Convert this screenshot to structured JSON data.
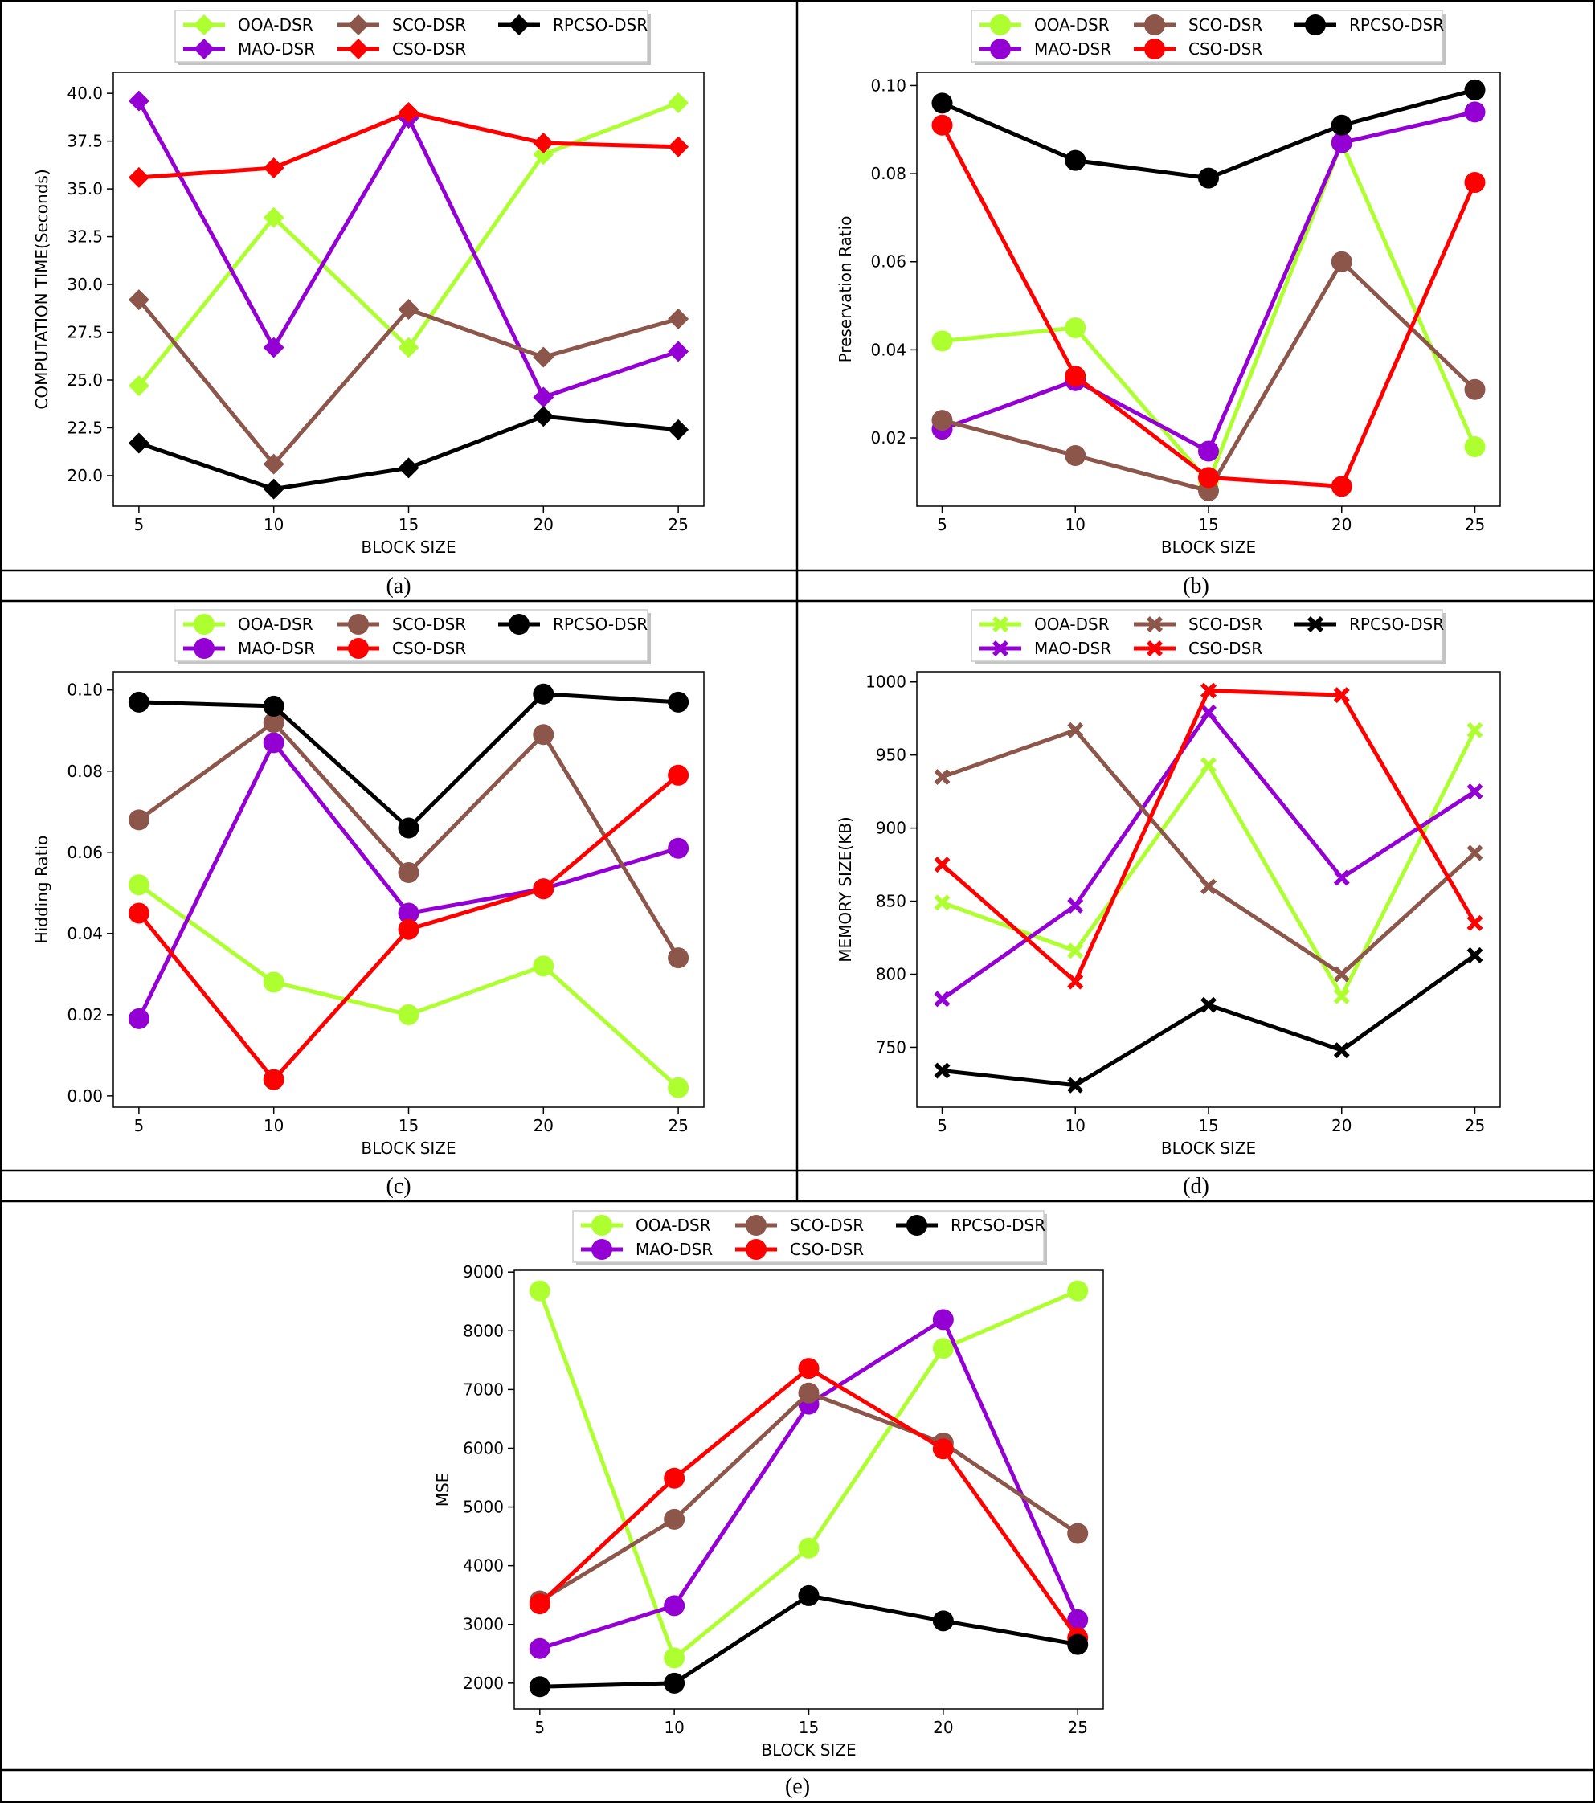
{
  "figure": {
    "panels": [
      {
        "id": "a",
        "caption": "(a)"
      },
      {
        "id": "b",
        "caption": "(b)"
      },
      {
        "id": "c",
        "caption": "(c)"
      },
      {
        "id": "d",
        "caption": "(d)"
      },
      {
        "id": "e",
        "caption": "(e)"
      }
    ]
  },
  "colors": {
    "OOA-DSR": "#adff2f",
    "MAO-DSR": "#9400d3",
    "SCO-DSR": "#8c564b",
    "CSO-DSR": "#ff0000",
    "RPCSO-DSR": "#000000"
  },
  "chart_data": [
    {
      "id": "a",
      "type": "line",
      "marker": "diamond",
      "title": "",
      "xlabel": "BLOCK SIZE",
      "ylabel": "COMPUTATION TIME(Seconds)",
      "x": [
        5,
        10,
        15,
        20,
        25
      ],
      "xlim": [
        4.05,
        25.95
      ],
      "ylim": [
        18.4,
        41.1
      ],
      "yticks": [
        "20.0",
        "22.5",
        "25.0",
        "27.5",
        "30.0",
        "32.5",
        "35.0",
        "37.5",
        "40.0"
      ],
      "grid": false,
      "legend": "top-center",
      "series": [
        {
          "name": "OOA-DSR",
          "values": [
            24.7,
            33.5,
            26.7,
            36.8,
            39.5
          ]
        },
        {
          "name": "MAO-DSR",
          "values": [
            39.6,
            26.7,
            38.7,
            24.1,
            26.5
          ]
        },
        {
          "name": "SCO-DSR",
          "values": [
            29.2,
            20.6,
            28.7,
            26.2,
            28.2
          ]
        },
        {
          "name": "CSO-DSR",
          "values": [
            35.6,
            36.1,
            39.0,
            37.4,
            37.2
          ]
        },
        {
          "name": "RPCSO-DSR",
          "values": [
            21.7,
            19.3,
            20.4,
            23.1,
            22.4
          ]
        }
      ]
    },
    {
      "id": "b",
      "type": "line",
      "marker": "circle",
      "title": "",
      "xlabel": "BLOCK SIZE",
      "ylabel": "Preservation Ratio",
      "x": [
        5,
        10,
        15,
        20,
        25
      ],
      "xlim": [
        4.05,
        25.95
      ],
      "ylim": [
        0.0045,
        0.103
      ],
      "yticks": [
        "0.02",
        "0.04",
        "0.06",
        "0.08",
        "0.10"
      ],
      "grid": false,
      "legend": "top-center",
      "series": [
        {
          "name": "OOA-DSR",
          "values": [
            0.042,
            0.045,
            0.01,
            0.087,
            0.018
          ]
        },
        {
          "name": "MAO-DSR",
          "values": [
            0.022,
            0.033,
            0.017,
            0.087,
            0.094
          ]
        },
        {
          "name": "SCO-DSR",
          "values": [
            0.024,
            0.016,
            0.008,
            0.06,
            0.031
          ]
        },
        {
          "name": "CSO-DSR",
          "values": [
            0.091,
            0.034,
            0.011,
            0.009,
            0.078
          ]
        },
        {
          "name": "RPCSO-DSR",
          "values": [
            0.096,
            0.083,
            0.079,
            0.091,
            0.099
          ]
        }
      ]
    },
    {
      "id": "c",
      "type": "line",
      "marker": "circle",
      "title": "",
      "xlabel": "BLOCK SIZE",
      "ylabel": "Hidding Ratio",
      "x": [
        5,
        10,
        15,
        20,
        25
      ],
      "xlim": [
        4.05,
        25.95
      ],
      "ylim": [
        -0.0028,
        0.1045
      ],
      "yticks": [
        "0.00",
        "0.02",
        "0.04",
        "0.06",
        "0.08",
        "0.10"
      ],
      "grid": false,
      "legend": "top-center",
      "series": [
        {
          "name": "OOA-DSR",
          "values": [
            0.052,
            0.028,
            0.02,
            0.032,
            0.002
          ]
        },
        {
          "name": "MAO-DSR",
          "values": [
            0.019,
            0.087,
            0.045,
            0.051,
            0.061
          ]
        },
        {
          "name": "SCO-DSR",
          "values": [
            0.068,
            0.092,
            0.055,
            0.089,
            0.034
          ]
        },
        {
          "name": "CSO-DSR",
          "values": [
            0.045,
            0.004,
            0.041,
            0.051,
            0.079
          ]
        },
        {
          "name": "RPCSO-DSR",
          "values": [
            0.097,
            0.096,
            0.066,
            0.099,
            0.097
          ]
        }
      ]
    },
    {
      "id": "d",
      "type": "line",
      "marker": "x",
      "title": "",
      "xlabel": "BLOCK SIZE",
      "ylabel": "MEMORY SIZE(KB)",
      "x": [
        5,
        10,
        15,
        20,
        25
      ],
      "xlim": [
        4.05,
        25.95
      ],
      "ylim": [
        709,
        1007
      ],
      "yticks": [
        "750",
        "800",
        "850",
        "900",
        "950",
        "1000"
      ],
      "grid": false,
      "legend": "top-center",
      "series": [
        {
          "name": "OOA-DSR",
          "values": [
            849,
            816,
            943,
            785,
            967
          ]
        },
        {
          "name": "MAO-DSR",
          "values": [
            783,
            847,
            979,
            866,
            925
          ]
        },
        {
          "name": "SCO-DSR",
          "values": [
            935,
            967,
            860,
            800,
            883
          ]
        },
        {
          "name": "CSO-DSR",
          "values": [
            875,
            795,
            994,
            991,
            835
          ]
        },
        {
          "name": "RPCSO-DSR",
          "values": [
            734,
            724,
            779,
            748,
            813
          ]
        }
      ]
    },
    {
      "id": "e",
      "type": "line",
      "marker": "circle",
      "title": "",
      "xlabel": "BLOCK SIZE",
      "ylabel": "MSE",
      "x": [
        5,
        10,
        15,
        20,
        25
      ],
      "xlim": [
        4.05,
        25.95
      ],
      "ylim": [
        1560,
        9030
      ],
      "yticks": [
        "2000",
        "3000",
        "4000",
        "5000",
        "6000",
        "7000",
        "8000",
        "9000"
      ],
      "grid": false,
      "legend": "top-center",
      "series": [
        {
          "name": "OOA-DSR",
          "values": [
            8680,
            2430,
            4300,
            7700,
            8680
          ]
        },
        {
          "name": "MAO-DSR",
          "values": [
            2590,
            3320,
            6750,
            8190,
            3080
          ]
        },
        {
          "name": "SCO-DSR",
          "values": [
            3400,
            4790,
            6940,
            6090,
            4550
          ]
        },
        {
          "name": "CSO-DSR",
          "values": [
            3350,
            5490,
            7360,
            5990,
            2770
          ]
        },
        {
          "name": "RPCSO-DSR",
          "values": [
            1940,
            2000,
            3490,
            3060,
            2660
          ]
        }
      ]
    }
  ]
}
